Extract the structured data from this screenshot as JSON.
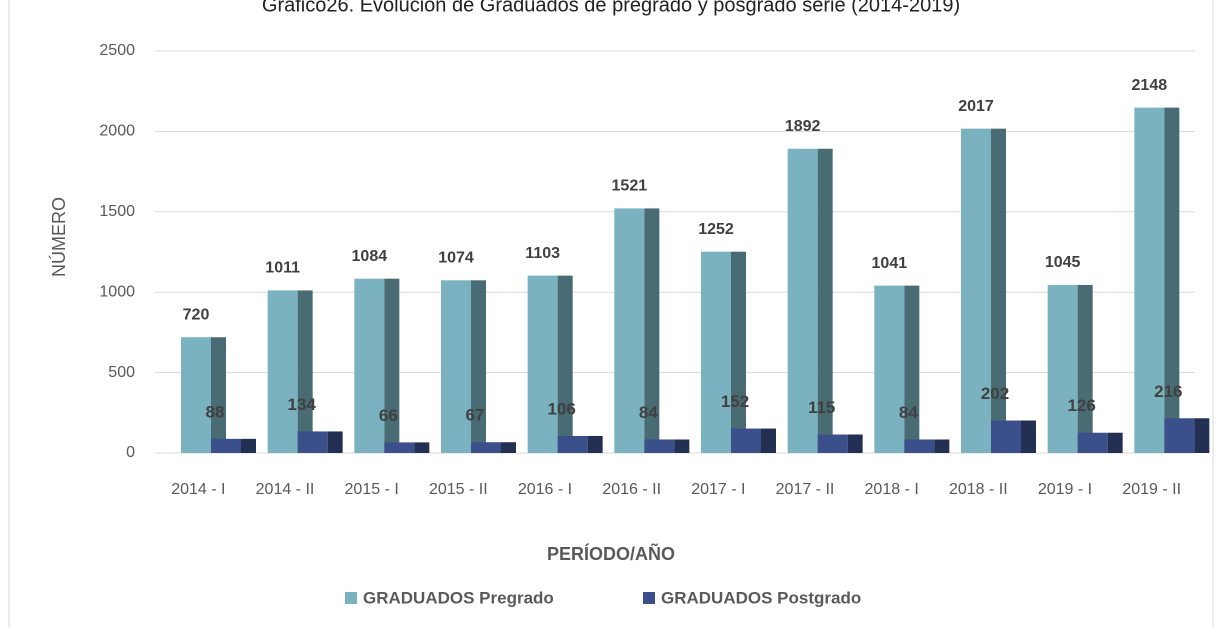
{
  "chart_data": {
    "type": "bar",
    "title": "Gráfico26. Evolución de Graduados de pregrado y posgrado serie (2014-2019)",
    "x_label": "PERÍODO/AÑO",
    "y_label": "NÚMERO",
    "categories": [
      "2014 - I",
      "2014 - II",
      "2015 - I",
      "2015 - II",
      "2016 - I",
      "2016 - II",
      "2017 - I",
      "2017 - II",
      "2018 - I",
      "2018 - II",
      "2019 - I",
      "2019 - II"
    ],
    "series": [
      {
        "name": "GRADUADOS Pregrado",
        "color": "#7ab3bf",
        "values": [
          720,
          1011,
          1084,
          1074,
          1103,
          1521,
          1252,
          1892,
          1041,
          2017,
          1045,
          2148
        ]
      },
      {
        "name": "GRADUADOS Postgrado",
        "color": "#3b4f8a",
        "values": [
          88,
          134,
          66,
          67,
          106,
          84,
          152,
          115,
          84,
          202,
          126,
          216
        ]
      }
    ],
    "ylim": [
      0,
      2500
    ],
    "yticks": [
      0,
      500,
      1000,
      1500,
      2000,
      2500
    ],
    "grid": true,
    "legend": "bottom"
  }
}
